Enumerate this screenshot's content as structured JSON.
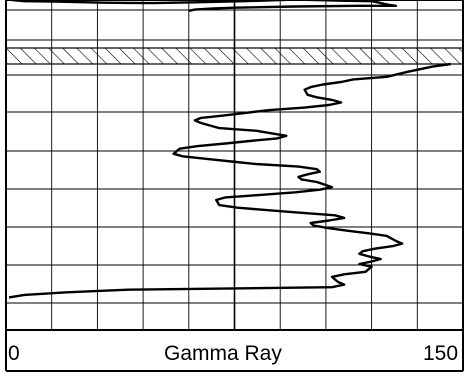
{
  "chart_data": {
    "type": "line",
    "xlabel": "Gamma Ray",
    "xlim": [
      0,
      150
    ],
    "x_tick_labels": [
      "0",
      "150"
    ],
    "grid": true,
    "legend": "none",
    "features": [
      {
        "name": "hatched-interval",
        "kind": "hatched band"
      }
    ],
    "series": [
      {
        "values_upper": [
          [
            2,
            125
          ],
          [
            6,
            122
          ],
          [
            16,
            121
          ],
          [
            32,
            118
          ],
          [
            48,
            117
          ],
          [
            62,
            119
          ],
          [
            78,
            122
          ],
          [
            95,
            126
          ],
          [
            112,
            123
          ],
          [
            120,
            122
          ],
          [
            122,
            119
          ],
          [
            124,
            115
          ],
          [
            126,
            112
          ],
          [
            128,
            110
          ],
          [
            115,
            110
          ],
          [
            95,
            108
          ],
          [
            75,
            105
          ],
          [
            68,
            103
          ],
          [
            62,
            100
          ],
          [
            60,
            97
          ]
        ],
        "values_lower": [
          [
            146,
            92
          ],
          [
            140,
            91
          ],
          [
            132,
            89
          ],
          [
            125,
            87
          ],
          [
            114,
            86
          ],
          [
            110,
            85
          ],
          [
            104,
            84
          ],
          [
            100,
            83
          ],
          [
            98,
            82
          ],
          [
            99,
            80
          ],
          [
            102,
            79
          ],
          [
            107,
            78
          ],
          [
            110,
            77
          ],
          [
            106,
            76
          ],
          [
            98,
            75
          ],
          [
            86,
            74
          ],
          [
            72,
            72
          ],
          [
            64,
            71
          ],
          [
            62,
            70
          ],
          [
            64,
            69
          ],
          [
            70,
            67
          ],
          [
            82,
            66
          ],
          [
            92,
            64
          ],
          [
            89,
            63
          ],
          [
            80,
            62
          ],
          [
            72,
            61
          ],
          [
            63,
            60
          ],
          [
            57,
            59
          ],
          [
            55,
            57
          ],
          [
            58,
            56
          ],
          [
            66,
            55
          ],
          [
            74,
            54
          ],
          [
            82,
            53
          ],
          [
            96,
            52
          ],
          [
            102,
            51
          ],
          [
            103,
            50
          ],
          [
            99,
            49
          ],
          [
            96,
            48
          ],
          [
            97,
            47
          ],
          [
            102,
            46
          ],
          [
            107,
            44
          ],
          [
            103,
            43
          ],
          [
            95,
            42
          ],
          [
            84,
            41
          ],
          [
            72,
            40
          ],
          [
            69,
            39
          ],
          [
            70,
            37
          ],
          [
            76,
            36
          ],
          [
            86,
            35
          ],
          [
            97,
            34
          ],
          [
            108,
            33
          ],
          [
            111,
            32
          ],
          [
            106,
            31
          ],
          [
            100,
            30
          ],
          [
            101,
            29
          ],
          [
            106,
            28
          ],
          [
            112,
            27
          ],
          [
            119,
            26
          ],
          [
            125,
            25
          ],
          [
            128,
            23
          ],
          [
            130,
            22
          ],
          [
            127,
            21
          ],
          [
            121,
            20
          ],
          [
            117,
            19
          ],
          [
            116,
            18
          ],
          [
            119,
            17
          ],
          [
            123,
            16
          ],
          [
            120,
            15
          ],
          [
            116,
            14
          ],
          [
            120,
            13
          ],
          [
            118,
            11
          ],
          [
            111,
            10
          ],
          [
            107,
            9
          ],
          [
            108,
            8
          ],
          [
            109,
            7
          ],
          [
            111,
            6
          ],
          [
            107,
            5
          ],
          [
            40,
            4
          ],
          [
            20,
            3
          ],
          [
            6,
            2
          ],
          [
            1,
            1
          ]
        ]
      }
    ]
  }
}
